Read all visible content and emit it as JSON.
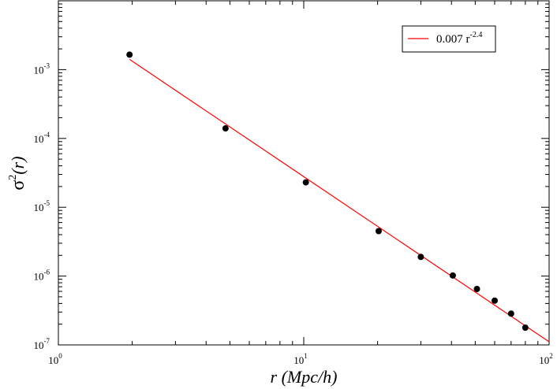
{
  "chart_data": {
    "type": "scatter",
    "xlabel": "r (Mpc/h)",
    "ylabel": {
      "base": "σ",
      "sup": "2",
      "rest": "(r)"
    },
    "xscale": "log",
    "yscale": "log",
    "xlim": [
      1,
      100
    ],
    "ylim": [
      1e-07,
      0.01
    ],
    "grid": false,
    "legend_position": "top-right",
    "x_ticks": [
      {
        "value": 1,
        "base": "10",
        "exp": "0"
      },
      {
        "value": 10,
        "base": "10",
        "exp": "1"
      },
      {
        "value": 100,
        "base": "10",
        "exp": "2"
      }
    ],
    "y_ticks": [
      {
        "value": 1e-07,
        "base": "10",
        "exp": "-7"
      },
      {
        "value": 1e-06,
        "base": "10",
        "exp": "-6"
      },
      {
        "value": 1e-05,
        "base": "10",
        "exp": "-5"
      },
      {
        "value": 0.0001,
        "base": "10",
        "exp": "-4"
      },
      {
        "value": 0.001,
        "base": "10",
        "exp": "-3"
      }
    ],
    "series": [
      {
        "kind": "points",
        "color": "#000000",
        "x": [
          1.95,
          4.8,
          10.2,
          20.2,
          30,
          40.5,
          50.8,
          60,
          70,
          80
        ],
        "y": [
          0.00165,
          0.00014,
          2.3e-05,
          4.5e-06,
          1.9e-06,
          1.02e-06,
          6.5e-07,
          4.4e-07,
          2.85e-07,
          1.78e-07
        ]
      },
      {
        "kind": "fit",
        "name": {
          "text": "0.007 r",
          "exp": "-2.4"
        },
        "color": "#ff0000",
        "coefficient": 0.007,
        "exponent": -2.4,
        "x_range": [
          1.95,
          100
        ]
      }
    ]
  }
}
